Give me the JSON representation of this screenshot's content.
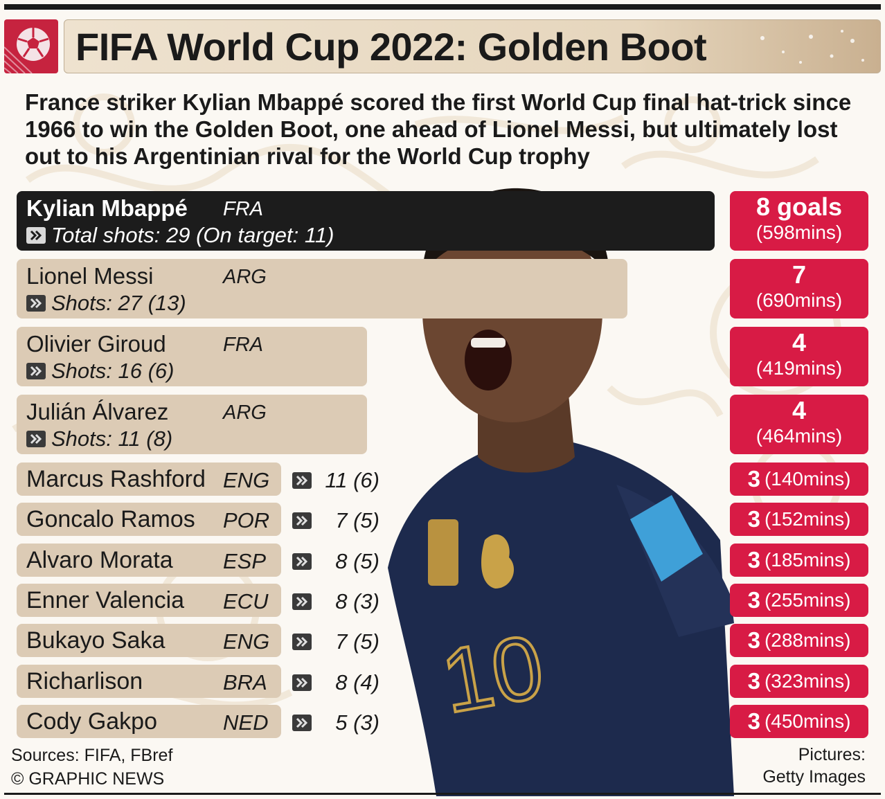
{
  "title": "FIFA World Cup 2022: Golden Boot",
  "intro": "France striker Kylian Mbappé scored the first World Cup final hat-trick since 1966 to win the Golden Boot, one ahead of Lionel Messi, but ultimately lost out to his Argentinian rival for the World Cup trophy",
  "colors": {
    "accent": "#d81b45",
    "tan": "#dccbb5",
    "dark": "#1c1c1c"
  },
  "icons": {
    "logo": "soccer-ball-icon",
    "chevron": "double-chevron-icon"
  },
  "chart_data": {
    "type": "bar",
    "categories": [
      "Kylian Mbappé",
      "Lionel Messi",
      "Olivier Giroud",
      "Julián Álvarez",
      "Marcus Rashford",
      "Goncalo Ramos",
      "Alvaro Morata",
      "Enner Valencia",
      "Bukayo Saka",
      "Richarlison",
      "Cody Gakpo"
    ],
    "series": [
      {
        "values": [
          8,
          7,
          4,
          4,
          3,
          3,
          3,
          3,
          3,
          3,
          3
        ]
      }
    ],
    "top_players": [
      {
        "name": "Kylian Mbappé",
        "nation": "FRA",
        "goals": "8 goals",
        "mins": "(598mins)",
        "shots": "Total shots: 29 (On target: 11)"
      },
      {
        "name": "Lionel Messi",
        "nation": "ARG",
        "goals": "7",
        "mins": "(690mins)",
        "shots": "Shots: 27 (13)"
      },
      {
        "name": "Olivier Giroud",
        "nation": "FRA",
        "goals": "4",
        "mins": "(419mins)",
        "shots": "Shots: 16 (6)"
      },
      {
        "name": "Julián Álvarez",
        "nation": "ARG",
        "goals": "4",
        "mins": "(464mins)",
        "shots": "Shots: 11 (8)"
      }
    ],
    "other_players": [
      {
        "name": "Marcus Rashford",
        "nation": "ENG",
        "shots": "11 (6)",
        "goals": "3",
        "mins": "(140mins)"
      },
      {
        "name": "Goncalo Ramos",
        "nation": "POR",
        "shots": "7 (5)",
        "goals": "3",
        "mins": "(152mins)"
      },
      {
        "name": "Alvaro Morata",
        "nation": "ESP",
        "shots": "8 (5)",
        "goals": "3",
        "mins": "(185mins)"
      },
      {
        "name": "Enner Valencia",
        "nation": "ECU",
        "shots": "8 (3)",
        "goals": "3",
        "mins": "(255mins)"
      },
      {
        "name": "Bukayo Saka",
        "nation": "ENG",
        "shots": "7 (5)",
        "goals": "3",
        "mins": "(288mins)"
      },
      {
        "name": "Richarlison",
        "nation": "BRA",
        "shots": "8 (4)",
        "goals": "3",
        "mins": "(323mins)"
      },
      {
        "name": "Cody Gakpo",
        "nation": "NED",
        "shots": "5 (3)",
        "goals": "3",
        "mins": "(450mins)"
      }
    ]
  },
  "footer": {
    "sources": "Sources: FIFA, FBref",
    "copyright": "© GRAPHIC NEWS",
    "pictures_label": "Pictures:",
    "pictures_credit": "Getty Images"
  }
}
